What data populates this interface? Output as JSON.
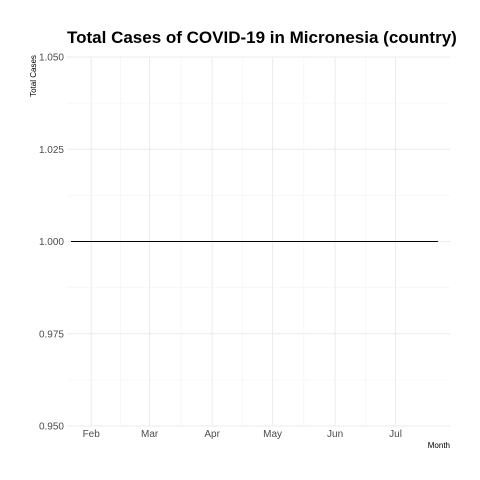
{
  "chart_data": {
    "type": "line",
    "title": "Total Cases of COVID-19 in Micronesia (country)",
    "xlabel": "Month",
    "ylabel": "Total Cases",
    "x_tick_labels": [
      "Feb",
      "Mar",
      "Apr",
      "May",
      "Jun",
      "Jul"
    ],
    "x_tick_dates": [
      "2020-02-01",
      "2020-03-01",
      "2020-04-01",
      "2020-05-01",
      "2020-06-01",
      "2020-07-01"
    ],
    "xlim": [
      "2020-01-20",
      "2020-07-28"
    ],
    "y_tick_labels": [
      "0.950",
      "0.975",
      "1.000",
      "1.025",
      "1.050"
    ],
    "y_ticks": [
      0.95,
      0.975,
      1.0,
      1.025,
      1.05
    ],
    "ylim": [
      0.95,
      1.05
    ],
    "grid": true,
    "colors": {
      "line": "#000000",
      "grid": "#ebebeb"
    },
    "series": [
      {
        "x": [
          "2020-01-22",
          "2020-07-22"
        ],
        "y": [
          1,
          1
        ]
      }
    ]
  }
}
